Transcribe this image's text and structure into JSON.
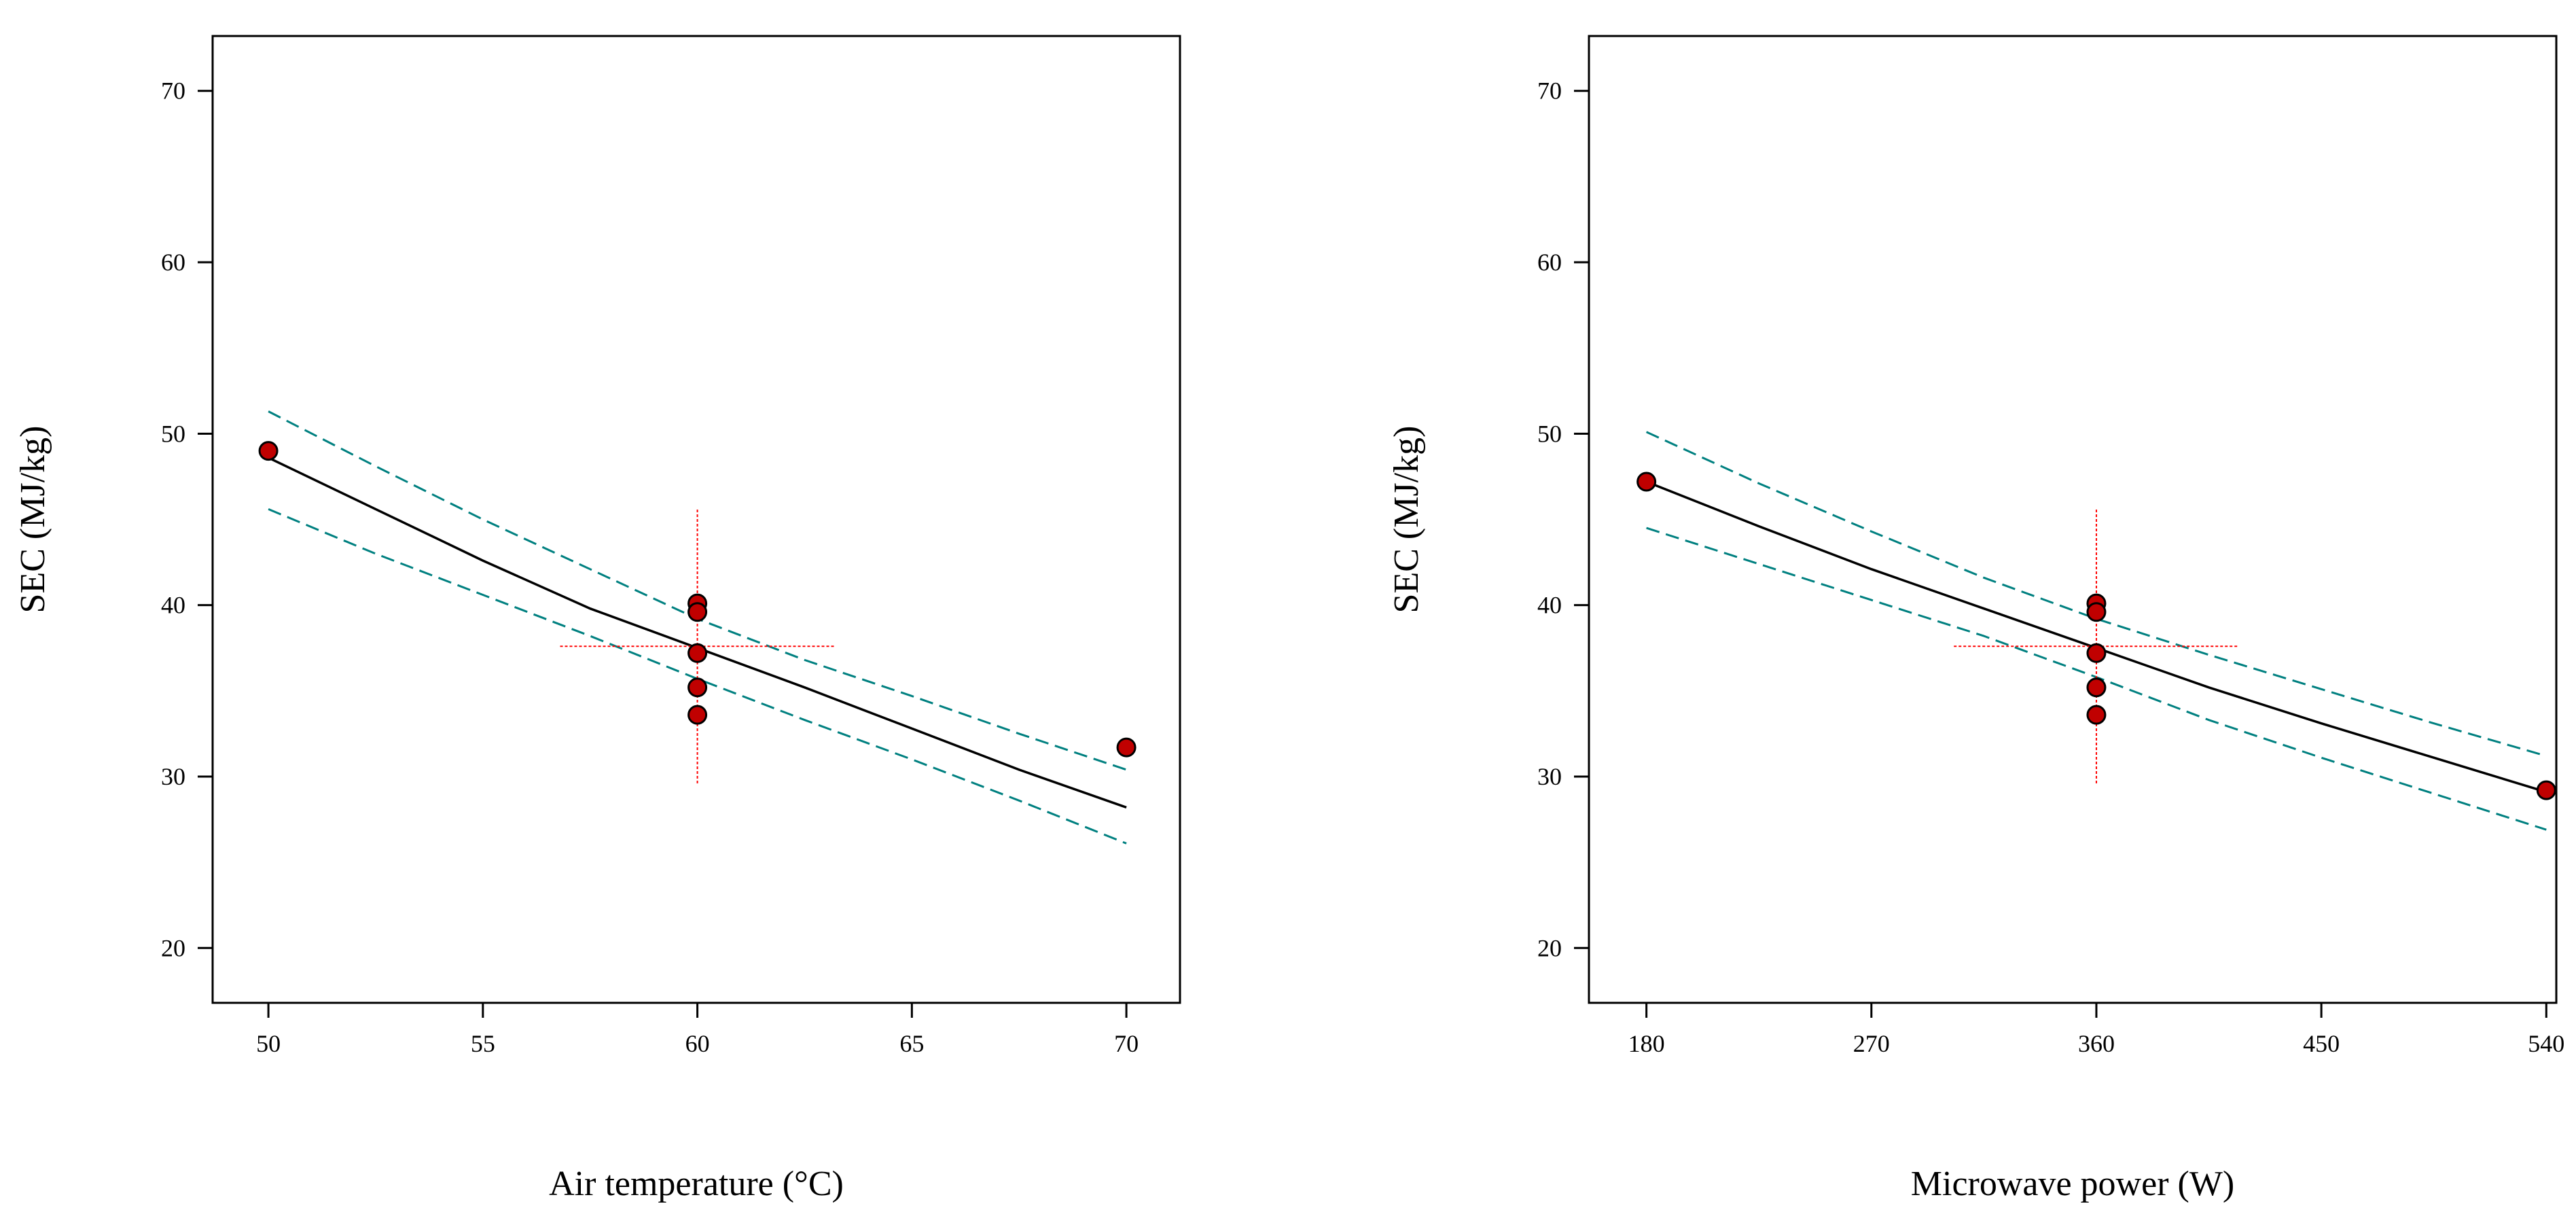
{
  "chart_data": [
    {
      "type": "line",
      "xlabel": "Air temperature (°C)",
      "ylabel": "SEC (MJ/kg)",
      "xlim": [
        48.7,
        71.25
      ],
      "ylim": [
        16.8,
        73.2
      ],
      "xticks": [
        50,
        55,
        60,
        65,
        70
      ],
      "yticks": [
        20,
        30,
        40,
        50,
        60,
        70
      ],
      "fit": {
        "x": [
          50,
          52.5,
          55,
          57.5,
          60,
          62.5,
          65,
          67.5,
          70
        ],
        "y": [
          48.6,
          45.6,
          42.6,
          39.8,
          37.5,
          35.2,
          32.8,
          30.4,
          28.2
        ]
      },
      "ci_upper": {
        "x": [
          50,
          52.5,
          55,
          57.5,
          60,
          62.5,
          65,
          67.5,
          70
        ],
        "y": [
          51.3,
          48.1,
          45.0,
          42.1,
          39.2,
          36.8,
          34.7,
          32.5,
          30.4
        ]
      },
      "ci_lower": {
        "x": [
          50,
          52.5,
          55,
          57.5,
          60,
          62.5,
          65,
          67.5,
          70
        ],
        "y": [
          45.6,
          43.0,
          40.6,
          38.2,
          35.7,
          33.3,
          31.0,
          28.6,
          26.1
        ]
      },
      "points": [
        {
          "x": 50,
          "y": 49.0
        },
        {
          "x": 60,
          "y": 40.1
        },
        {
          "x": 60,
          "y": 39.6
        },
        {
          "x": 60,
          "y": 37.2
        },
        {
          "x": 60,
          "y": 35.2
        },
        {
          "x": 60,
          "y": 33.6
        },
        {
          "x": 70,
          "y": 31.7
        }
      ],
      "crosshair": {
        "x": 60,
        "y": 37.6,
        "x_range": [
          56.8,
          63.2
        ],
        "y_range": [
          29.6,
          45.6
        ]
      }
    },
    {
      "type": "line",
      "xlabel": "Microwave power (W)",
      "ylabel": "SEC (MJ/kg)",
      "xlim": [
        157,
        544
      ],
      "ylim": [
        16.8,
        73.2
      ],
      "xticks": [
        180,
        270,
        360,
        450,
        540
      ],
      "yticks": [
        20,
        30,
        40,
        50,
        60,
        70
      ],
      "fit": {
        "x": [
          180,
          225,
          270,
          315,
          360,
          405,
          450,
          495,
          540
        ],
        "y": [
          47.2,
          44.6,
          42.1,
          39.8,
          37.5,
          35.2,
          33.1,
          31.1,
          29.1
        ]
      },
      "ci_upper": {
        "x": [
          180,
          225,
          270,
          315,
          360,
          405,
          450,
          495,
          540
        ],
        "y": [
          50.1,
          47.1,
          44.3,
          41.6,
          39.2,
          37.1,
          35.1,
          33.1,
          31.2
        ]
      },
      "ci_lower": {
        "x": [
          180,
          225,
          270,
          315,
          360,
          405,
          450,
          495,
          540
        ],
        "y": [
          44.5,
          42.4,
          40.3,
          38.2,
          35.8,
          33.3,
          31.1,
          29.0,
          26.9
        ]
      },
      "points": [
        {
          "x": 180,
          "y": 47.2
        },
        {
          "x": 360,
          "y": 40.1
        },
        {
          "x": 360,
          "y": 39.6
        },
        {
          "x": 360,
          "y": 37.2
        },
        {
          "x": 360,
          "y": 35.2
        },
        {
          "x": 360,
          "y": 33.6
        },
        {
          "x": 540,
          "y": 29.2
        }
      ],
      "crosshair": {
        "x": 360,
        "y": 37.6,
        "x_range": [
          303,
          417
        ],
        "y_range": [
          29.6,
          45.6
        ]
      }
    }
  ],
  "colors": {
    "fit_line": "#000000",
    "ci_line": "#008080",
    "point_fill": "#c00000",
    "point_stroke": "#000000",
    "crosshair": "#ff0000",
    "frame": "#000000"
  }
}
